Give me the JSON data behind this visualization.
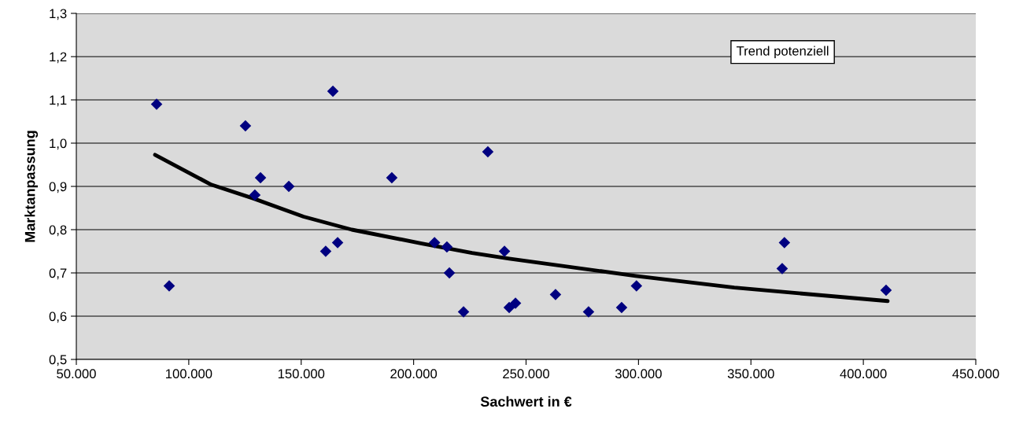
{
  "chart_data": {
    "type": "scatter",
    "xlabel": "Sachwert in €",
    "ylabel": "Marktanpassung",
    "xlim": [
      50000,
      450000
    ],
    "xticks": [
      {
        "value": 50000,
        "label": "50.000"
      },
      {
        "value": 100000,
        "label": "100.000"
      },
      {
        "value": 150000,
        "label": "150.000"
      },
      {
        "value": 200000,
        "label": "200.000"
      },
      {
        "value": 250000,
        "label": "250.000"
      },
      {
        "value": 300000,
        "label": "300.000"
      },
      {
        "value": 350000,
        "label": "350.000"
      },
      {
        "value": 400000,
        "label": "400.000"
      },
      {
        "value": 450000,
        "label": "450.000"
      }
    ],
    "ylim": [
      0.5,
      1.3
    ],
    "yticks": [
      {
        "value": 0.5,
        "label": "0,5"
      },
      {
        "value": 0.6,
        "label": "0,6"
      },
      {
        "value": 0.7,
        "label": "0,7"
      },
      {
        "value": 0.8,
        "label": "0,8"
      },
      {
        "value": 0.9,
        "label": "0,9"
      },
      {
        "value": 1.0,
        "label": "1,0"
      },
      {
        "value": 1.1,
        "label": "1,1"
      },
      {
        "value": 1.2,
        "label": "1,2"
      },
      {
        "value": 1.3,
        "label": "1,3"
      }
    ],
    "grid": "y",
    "legend": "top right",
    "marker": "diamond",
    "series": [
      {
        "color": "#000080",
        "x": [
          85700,
          91300,
          125200,
          129400,
          131900,
          144500,
          160900,
          164100,
          166200,
          190300,
          209300,
          214800,
          215900,
          222200,
          233000,
          240400,
          242500,
          245300,
          263100,
          277800,
          292500,
          299100,
          363900,
          364900,
          410100
        ],
        "values": [
          1.09,
          0.67,
          1.04,
          0.88,
          0.92,
          0.9,
          0.75,
          1.12,
          0.77,
          0.92,
          0.77,
          0.76,
          0.7,
          0.61,
          0.98,
          0.75,
          0.62,
          0.63,
          0.65,
          0.61,
          0.62,
          0.67,
          0.71,
          0.77,
          0.66
        ]
      },
      {
        "type": "line",
        "name": "Trend potenziell",
        "color": "#000000",
        "marker": "none",
        "x": [
          85000,
          110000,
          128800,
          151100,
          172500,
          203600,
          226000,
          242500,
          298800,
          342600,
          410800
        ],
        "values": [
          0.973,
          0.904,
          0.872,
          0.83,
          0.8,
          0.768,
          0.746,
          0.733,
          0.693,
          0.666,
          0.635
        ]
      }
    ]
  }
}
